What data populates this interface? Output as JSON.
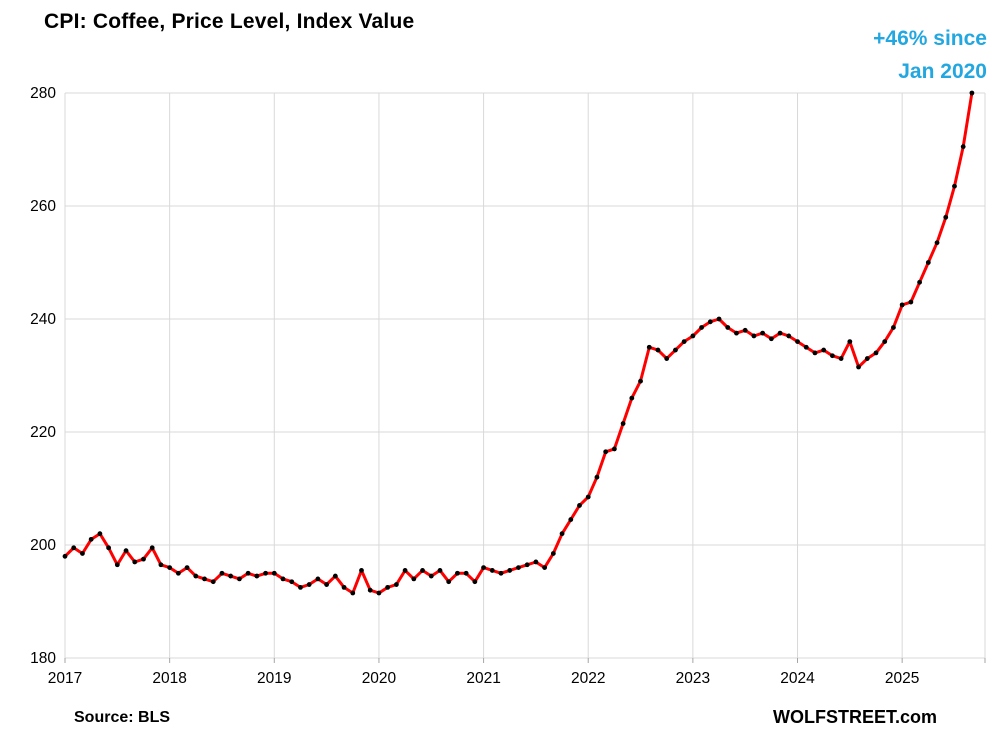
{
  "page": {
    "title": "CPI: Coffee, Price Level, Index Value",
    "annotation": {
      "line1": "+46% since",
      "line2": "Jan 2020",
      "color": "#22A7E0"
    },
    "source": "Source: BLS",
    "watermark": "WOLFSTREET.com"
  },
  "chart_data": {
    "type": "line",
    "title": "CPI: Coffee, Price Level, Index Value",
    "xlabel": "",
    "ylabel": "",
    "ylim": [
      180,
      280
    ],
    "y_ticks": [
      180,
      200,
      220,
      240,
      260,
      280
    ],
    "x_tick_labels": [
      "2017",
      "2018",
      "2019",
      "2020",
      "2021",
      "2022",
      "2023",
      "2024",
      "2025"
    ],
    "months_per_tick": 12,
    "x_domain_months": 105.5,
    "grid": true,
    "legend_position": "none",
    "grid_color": "#D9D9D9",
    "line_color": "#FF0000",
    "marker_color": "#000000",
    "annotation": "+46% since Jan 2020",
    "series": [
      {
        "name": "CPI Coffee, index value, monthly",
        "start": "2017-01",
        "frequency": "monthly",
        "values": [
          198.0,
          199.5,
          198.5,
          201.0,
          202.0,
          199.5,
          196.5,
          199.0,
          197.0,
          197.5,
          199.5,
          196.5,
          196.0,
          195.0,
          196.0,
          194.5,
          194.0,
          193.5,
          195.0,
          194.5,
          194.0,
          195.0,
          194.5,
          195.0,
          195.0,
          194.0,
          193.5,
          192.5,
          193.0,
          194.0,
          193.0,
          194.5,
          192.5,
          191.5,
          195.5,
          192.0,
          191.5,
          192.5,
          193.0,
          195.5,
          194.0,
          195.5,
          194.5,
          195.5,
          193.5,
          195.0,
          195.0,
          193.5,
          196.0,
          195.5,
          195.0,
          195.5,
          196.0,
          196.5,
          197.0,
          196.0,
          198.5,
          202.0,
          204.5,
          207.0,
          208.5,
          212.0,
          216.5,
          217.0,
          221.5,
          226.0,
          229.0,
          235.0,
          234.5,
          233.0,
          234.5,
          236.0,
          237.0,
          238.5,
          239.5,
          240.0,
          238.5,
          237.5,
          238.0,
          237.0,
          237.5,
          236.5,
          237.5,
          237.0,
          236.0,
          235.0,
          234.0,
          234.5,
          233.5,
          233.0,
          236.0,
          231.5,
          233.0,
          234.0,
          236.0,
          238.5,
          242.5,
          243.0,
          246.5,
          250.0,
          253.5,
          258.0,
          263.5,
          270.5,
          280.0
        ]
      }
    ]
  }
}
